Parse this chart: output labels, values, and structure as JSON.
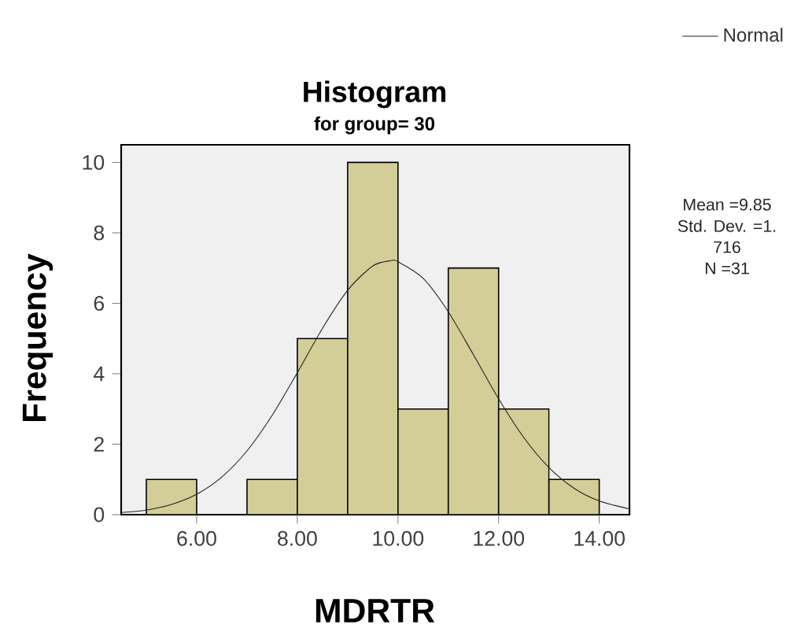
{
  "chart_data": {
    "type": "histogram",
    "title": "Histogram",
    "subtitle": "for group= 30",
    "xlabel": "MDRTR",
    "ylabel": "Frequency",
    "bins": [
      5,
      6,
      7,
      8,
      9,
      10,
      11,
      12,
      13,
      14
    ],
    "values": [
      1,
      0,
      1,
      5,
      10,
      3,
      7,
      3,
      1
    ],
    "color": "#d3ce97",
    "series": [
      {
        "name": "Normal",
        "type": "line",
        "color": "#202020",
        "x": [
          4.5,
          5,
          5.5,
          6,
          6.5,
          7,
          7.5,
          8,
          8.5,
          9,
          9.5,
          9.85,
          10,
          10.5,
          11,
          11.5,
          12,
          12.5,
          13,
          13.5,
          14,
          14.6
        ],
        "values": [
          0.06,
          0.13,
          0.29,
          0.58,
          1.07,
          1.81,
          2.82,
          4.03,
          5.29,
          6.37,
          7.06,
          7.21,
          7.18,
          6.71,
          5.76,
          4.54,
          3.29,
          2.19,
          1.34,
          0.75,
          0.39,
          0.16
        ]
      }
    ],
    "annotations": [
      "Mean =9.85",
      "Std. Dev. =1.",
      "716",
      "N =31"
    ],
    "xlim": [
      4.5,
      14.6
    ],
    "ylim": [
      0,
      10.5
    ],
    "xticks": [
      {
        "value": 6,
        "label": "6.00"
      },
      {
        "value": 8,
        "label": "8.00"
      },
      {
        "value": 10,
        "label": "10.00"
      },
      {
        "value": 12,
        "label": "12.00"
      },
      {
        "value": 14,
        "label": "14.00"
      }
    ],
    "yticks": [
      0,
      2,
      4,
      6,
      8,
      10
    ],
    "legend": "top right",
    "grid": false,
    "marker": "none"
  }
}
